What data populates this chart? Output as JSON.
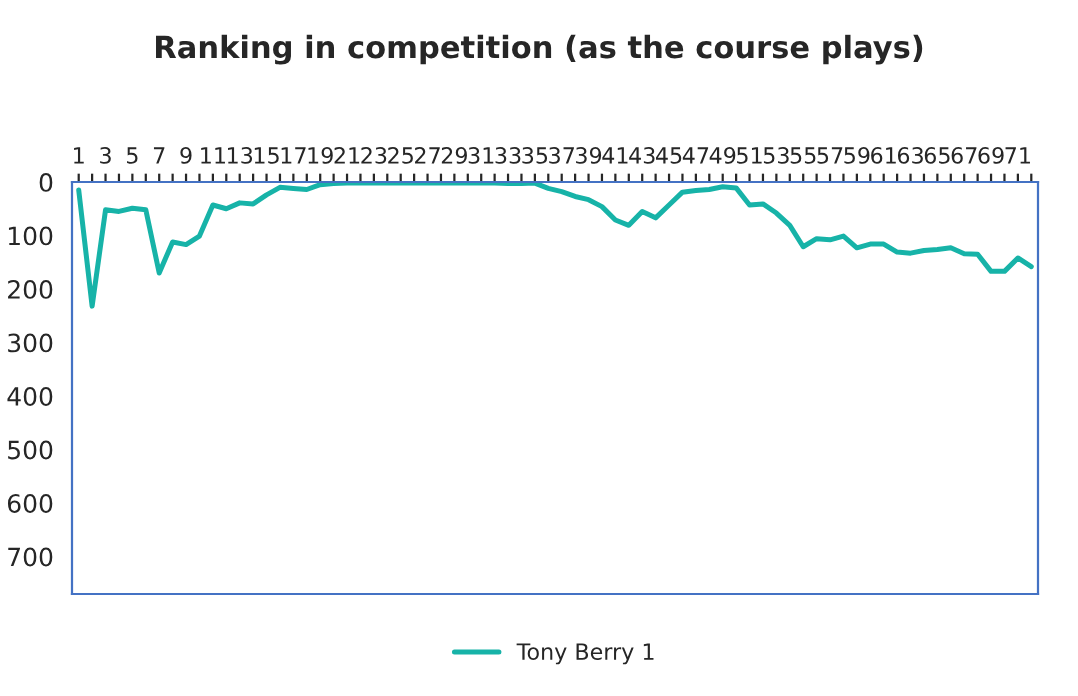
{
  "chart_data": {
    "type": "line",
    "title": "Ranking in competition (as the course plays)",
    "categories": [
      "1",
      null,
      "3",
      null,
      "5",
      null,
      "7",
      null,
      "9",
      null,
      "11",
      null,
      "13",
      null,
      "15",
      null,
      "17",
      null,
      "19",
      null,
      "21",
      null,
      "23",
      null,
      "25",
      null,
      "27",
      null,
      "29",
      null,
      "31",
      null,
      "33",
      null,
      "35",
      null,
      "37",
      null,
      "39",
      null,
      "41",
      null,
      "43",
      null,
      "45",
      null,
      "47",
      null,
      "49",
      null,
      "51",
      null,
      "53",
      null,
      "55",
      null,
      "57",
      null,
      "59",
      null,
      "61",
      null,
      "63",
      null,
      "65",
      null,
      "67",
      null,
      "69",
      null,
      "71",
      null
    ],
    "series": [
      {
        "name": "Tony Berry 1",
        "color": "#17b3a8",
        "values": [
          15,
          232,
          52,
          55,
          49,
          52,
          170,
          112,
          117,
          101,
          43,
          50,
          39,
          41,
          24,
          10,
          12,
          14,
          5,
          3,
          2,
          2,
          2,
          2,
          2,
          2,
          2,
          2,
          2,
          2,
          2,
          2,
          3,
          3,
          2,
          12,
          18,
          27,
          33,
          46,
          71,
          81,
          55,
          67,
          43,
          19,
          16,
          14,
          9,
          11,
          43,
          41,
          58,
          81,
          121,
          106,
          108,
          101,
          123,
          116,
          116,
          131,
          133,
          128,
          126,
          123,
          134,
          135,
          167,
          167,
          142,
          158
        ]
      }
    ],
    "ylim": [
      770,
      0
    ],
    "yticks": [
      0,
      100,
      200,
      300,
      400,
      500,
      600,
      700
    ],
    "grid": false,
    "legend": "bottom",
    "marker": "none",
    "line_style": "solid"
  }
}
